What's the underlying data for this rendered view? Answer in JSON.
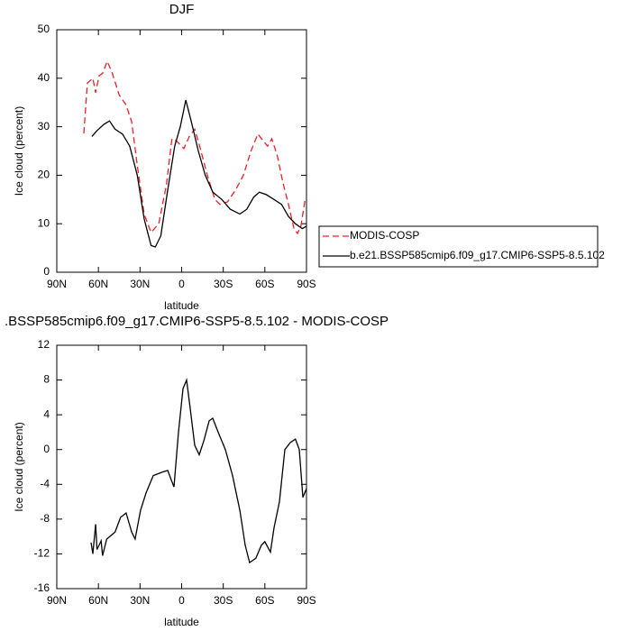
{
  "chart_data": [
    {
      "type": "line",
      "title": "DJF",
      "xlabel": "latitude",
      "ylabel": "Ice cloud (percent)",
      "xlim": [
        90,
        -90
      ],
      "xticks": [
        {
          "value": 90,
          "label": "90N"
        },
        {
          "value": 60,
          "label": "60N"
        },
        {
          "value": 30,
          "label": "30N"
        },
        0,
        {
          "value": -30,
          "label": "30S"
        },
        {
          "value": -60,
          "label": "60S"
        },
        {
          "value": -90,
          "label": "90S"
        }
      ],
      "ylim": [
        0,
        50
      ],
      "yticks": [
        0,
        10,
        20,
        30,
        40,
        50
      ],
      "legend": "right",
      "series": [
        {
          "name": "MODIS-COSP",
          "color": "#e8202a",
          "line_style": "dashed",
          "x": [
            70.5,
            68,
            64,
            62,
            59.5,
            57,
            53.6,
            50,
            45,
            40,
            36,
            32,
            27,
            22,
            16.5,
            11,
            7,
            3.5,
            -1.6,
            -5.5,
            -9.4,
            -13,
            -18.5,
            -24,
            -27.6,
            -33,
            -39,
            -44.5,
            -50,
            -55,
            -59,
            -62,
            -65,
            -69,
            -73,
            -77,
            -81,
            -83.5,
            -86,
            -89
          ],
          "values": [
            28.6,
            39,
            40,
            37,
            40.5,
            41,
            43.5,
            41,
            36.5,
            34.5,
            31,
            22,
            12,
            8.2,
            10,
            18,
            27.5,
            27,
            25.5,
            28,
            29.5,
            26,
            20,
            15,
            14,
            14.5,
            17,
            20,
            25,
            28.5,
            27,
            26,
            27.5,
            24,
            18.5,
            14,
            9,
            8,
            9.5,
            15
          ]
        },
        {
          "name": "b.e21.BSSP585cmip6.f09_g17.CMIP6-SSP5-8.5.102",
          "color": "#000000",
          "line_style": "solid",
          "x": [
            64.7,
            61,
            56,
            52,
            48,
            42.6,
            37.4,
            32,
            27,
            22,
            19,
            15,
            10,
            5,
            1,
            -3,
            -7,
            -12,
            -17,
            -22.5,
            -29,
            -35,
            -42,
            -47,
            -52,
            -56,
            -61,
            -66.6,
            -72,
            -77,
            -82,
            -87,
            -90
          ],
          "values": [
            28,
            29.2,
            30.5,
            31.2,
            29.5,
            28.5,
            26,
            20,
            11,
            5.5,
            5.2,
            7.5,
            17,
            26,
            30,
            35.5,
            31,
            25,
            20,
            16.5,
            15,
            13,
            12,
            13,
            15.5,
            16.5,
            16,
            15,
            14,
            11.5,
            10,
            9,
            9.5
          ]
        }
      ]
    },
    {
      "type": "line",
      "title": ".BSSP585cmip6.f09_g17.CMIP6-SSP5-8.5.102 - MODIS-COSP",
      "xlabel": "latitude",
      "ylabel": "Ice cloud (percent)",
      "xlim": [
        90,
        -90
      ],
      "xticks": [
        {
          "value": 90,
          "label": "90N"
        },
        {
          "value": 60,
          "label": "60N"
        },
        {
          "value": 30,
          "label": "30N"
        },
        0,
        {
          "value": -30,
          "label": "30S"
        },
        {
          "value": -60,
          "label": "60S"
        },
        {
          "value": -90,
          "label": "90S"
        }
      ],
      "ylim": [
        -16,
        12
      ],
      "yticks": [
        -16,
        -12,
        -8,
        -4,
        0,
        4,
        8,
        12
      ],
      "series": [
        {
          "color": "#000000",
          "line_style": "solid",
          "x": [
            65.3,
            64,
            62,
            61,
            58,
            57,
            54,
            51.7,
            48,
            44,
            40,
            36,
            33.5,
            29.6,
            25.7,
            20.5,
            14,
            10,
            7.5,
            5.5,
            2.3,
            -1,
            -3.6,
            -6,
            -9.4,
            -12.7,
            -16,
            -19.8,
            -22.4,
            -26.3,
            -31.5,
            -36.7,
            -42,
            -45.8,
            -49,
            -53.5,
            -57.5,
            -60,
            -64,
            -66.6,
            -70.5,
            -74.4,
            -78.3,
            -82,
            -84.8,
            -87.4,
            -90
          ],
          "values": [
            -10.7,
            -12,
            -8.6,
            -11.5,
            -10.5,
            -12.2,
            -10.3,
            -10,
            -9.5,
            -7.8,
            -7.3,
            -9.5,
            -10.3,
            -7,
            -5,
            -3,
            -2.6,
            -2.4,
            -3.5,
            -4.3,
            2,
            7,
            8,
            5,
            0.5,
            -0.6,
            1,
            3.3,
            3.6,
            2,
            0,
            -3,
            -7,
            -11,
            -13,
            -12.5,
            -11,
            -10.6,
            -11.8,
            -9,
            -6,
            0,
            0.8,
            1.2,
            0,
            -5.5,
            -4.5
          ]
        }
      ]
    }
  ]
}
